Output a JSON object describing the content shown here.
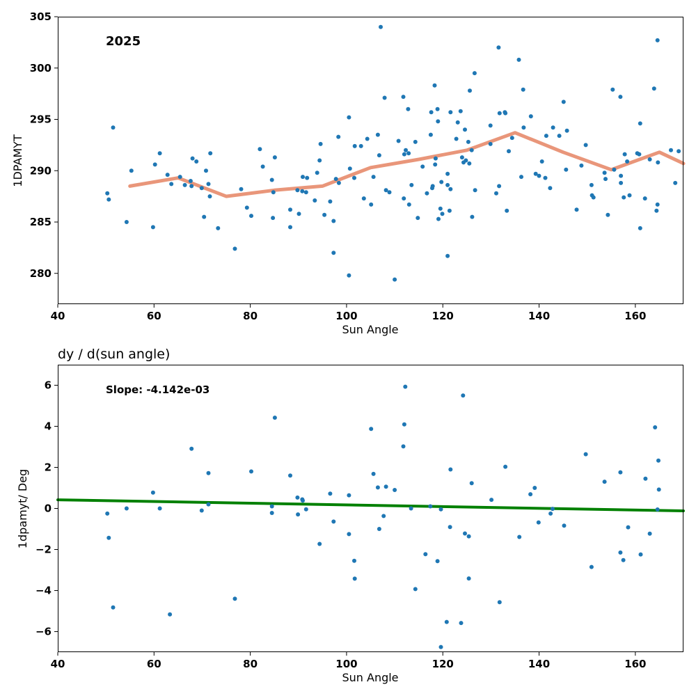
{
  "chart_data": [
    {
      "type": "scatter",
      "title": "",
      "annotation": "2025",
      "xlabel": "Sun Angle",
      "ylabel": "1DPAMYT",
      "xlim": [
        40,
        170
      ],
      "ylim": [
        277,
        305
      ],
      "xticks": [
        40,
        60,
        80,
        100,
        120,
        140,
        160
      ],
      "yticks": [
        280,
        285,
        290,
        295,
        300,
        305
      ],
      "grid": false,
      "colors": {
        "points": "#1f77b4",
        "line": "#e9967a"
      },
      "series": [
        {
          "type": "scatter",
          "points": [
            [
              50.3,
              287.8
            ],
            [
              50.6,
              287.2
            ],
            [
              51.5,
              294.2
            ],
            [
              54.3,
              285.0
            ],
            [
              55.3,
              290.0
            ],
            [
              59.8,
              284.5
            ],
            [
              60.2,
              290.6
            ],
            [
              61.2,
              291.7
            ],
            [
              62.8,
              289.6
            ],
            [
              63.6,
              288.7
            ],
            [
              65.4,
              289.4
            ],
            [
              66.4,
              288.6
            ],
            [
              67.6,
              289.0
            ],
            [
              67.8,
              288.5
            ],
            [
              68.0,
              291.2
            ],
            [
              68.8,
              290.9
            ],
            [
              69.9,
              288.3
            ],
            [
              70.4,
              285.5
            ],
            [
              70.8,
              290.0
            ],
            [
              71.3,
              288.7
            ],
            [
              71.6,
              287.5
            ],
            [
              71.7,
              291.7
            ],
            [
              73.3,
              284.4
            ],
            [
              76.8,
              282.4
            ],
            [
              78.1,
              288.2
            ],
            [
              79.3,
              286.4
            ],
            [
              80.2,
              285.6
            ],
            [
              82.0,
              292.1
            ],
            [
              82.6,
              290.4
            ],
            [
              84.5,
              289.1
            ],
            [
              84.7,
              285.4
            ],
            [
              84.8,
              287.9
            ],
            [
              85.1,
              291.3
            ],
            [
              88.3,
              286.2
            ],
            [
              88.3,
              284.5
            ],
            [
              89.8,
              288.1
            ],
            [
              90.1,
              285.8
            ],
            [
              90.8,
              288.0
            ],
            [
              90.9,
              289.4
            ],
            [
              91.6,
              287.9
            ],
            [
              91.8,
              289.3
            ],
            [
              93.4,
              287.1
            ],
            [
              93.9,
              289.8
            ],
            [
              94.4,
              291.0
            ],
            [
              94.6,
              292.6
            ],
            [
              95.4,
              285.7
            ],
            [
              96.6,
              287.0
            ],
            [
              97.3,
              285.1
            ],
            [
              97.3,
              282.0
            ],
            [
              97.8,
              289.2
            ],
            [
              98.3,
              293.3
            ],
            [
              98.4,
              288.8
            ],
            [
              100.5,
              279.8
            ],
            [
              100.5,
              295.2
            ],
            [
              100.7,
              290.2
            ],
            [
              101.6,
              289.3
            ],
            [
              101.7,
              292.4
            ],
            [
              103.0,
              292.4
            ],
            [
              103.6,
              287.3
            ],
            [
              104.3,
              293.1
            ],
            [
              105.1,
              286.7
            ],
            [
              105.6,
              289.4
            ],
            [
              106.5,
              293.5
            ],
            [
              106.8,
              291.5
            ],
            [
              107.1,
              304.0
            ],
            [
              107.9,
              297.1
            ],
            [
              108.2,
              288.1
            ],
            [
              108.9,
              287.9
            ],
            [
              110.0,
              279.4
            ],
            [
              110.8,
              292.9
            ],
            [
              111.8,
              297.2
            ],
            [
              111.9,
              287.3
            ],
            [
              112.0,
              291.6
            ],
            [
              112.3,
              292.0
            ],
            [
              112.8,
              296.0
            ],
            [
              112.9,
              291.7
            ],
            [
              113.0,
              286.7
            ],
            [
              113.5,
              288.6
            ],
            [
              114.3,
              292.8
            ],
            [
              114.8,
              285.4
            ],
            [
              115.8,
              290.4
            ],
            [
              116.7,
              287.8
            ],
            [
              117.5,
              293.5
            ],
            [
              117.6,
              295.7
            ],
            [
              117.8,
              288.3
            ],
            [
              117.9,
              288.5
            ],
            [
              118.3,
              298.3
            ],
            [
              118.4,
              290.6
            ],
            [
              118.5,
              291.2
            ],
            [
              118.9,
              296.0
            ],
            [
              119.0,
              294.8
            ],
            [
              119.1,
              285.3
            ],
            [
              119.5,
              286.3
            ],
            [
              119.7,
              288.9
            ],
            [
              119.9,
              285.8
            ],
            [
              121.0,
              288.6
            ],
            [
              121.0,
              289.7
            ],
            [
              121.0,
              281.7
            ],
            [
              121.4,
              286.1
            ],
            [
              121.6,
              295.7
            ],
            [
              121.6,
              288.2
            ],
            [
              122.8,
              293.1
            ],
            [
              123.1,
              294.7
            ],
            [
              123.7,
              295.8
            ],
            [
              124.0,
              291.3
            ],
            [
              124.3,
              290.8
            ],
            [
              124.6,
              294.0
            ],
            [
              124.8,
              291.0
            ],
            [
              125.3,
              292.8
            ],
            [
              125.5,
              290.7
            ],
            [
              125.6,
              297.8
            ],
            [
              126.0,
              292.0
            ],
            [
              126.1,
              285.5
            ],
            [
              126.6,
              299.5
            ],
            [
              126.7,
              288.1
            ],
            [
              129.9,
              294.4
            ],
            [
              129.9,
              292.6
            ],
            [
              131.1,
              287.8
            ],
            [
              131.6,
              302.0
            ],
            [
              131.7,
              288.5
            ],
            [
              131.8,
              295.6
            ],
            [
              132.9,
              295.7
            ],
            [
              133.0,
              295.6
            ],
            [
              133.3,
              286.1
            ],
            [
              133.7,
              291.9
            ],
            [
              134.4,
              293.2
            ],
            [
              135.8,
              300.8
            ],
            [
              136.3,
              289.4
            ],
            [
              136.7,
              297.9
            ],
            [
              136.8,
              294.2
            ],
            [
              138.3,
              295.3
            ],
            [
              139.3,
              289.7
            ],
            [
              140.0,
              289.5
            ],
            [
              140.6,
              290.9
            ],
            [
              141.3,
              289.3
            ],
            [
              141.5,
              293.4
            ],
            [
              142.3,
              288.3
            ],
            [
              142.9,
              294.2
            ],
            [
              144.2,
              293.4
            ],
            [
              145.1,
              296.7
            ],
            [
              145.6,
              290.1
            ],
            [
              145.8,
              293.9
            ],
            [
              147.8,
              286.2
            ],
            [
              148.8,
              290.5
            ],
            [
              149.7,
              292.5
            ],
            [
              150.9,
              288.6
            ],
            [
              151.0,
              287.6
            ],
            [
              151.3,
              287.4
            ],
            [
              153.6,
              289.8
            ],
            [
              153.8,
              289.2
            ],
            [
              154.3,
              285.7
            ],
            [
              155.3,
              297.9
            ],
            [
              155.6,
              290.1
            ],
            [
              156.9,
              297.2
            ],
            [
              157.0,
              288.8
            ],
            [
              157.0,
              289.5
            ],
            [
              157.6,
              287.4
            ],
            [
              157.8,
              291.6
            ],
            [
              158.3,
              290.9
            ],
            [
              158.8,
              287.6
            ],
            [
              160.4,
              291.7
            ],
            [
              160.8,
              291.6
            ],
            [
              161.0,
              284.4
            ],
            [
              161.0,
              294.6
            ],
            [
              162.0,
              287.3
            ],
            [
              163.0,
              291.1
            ],
            [
              163.9,
              298.0
            ],
            [
              164.4,
              286.1
            ],
            [
              164.6,
              302.7
            ],
            [
              164.6,
              286.7
            ],
            [
              164.7,
              290.8
            ],
            [
              167.4,
              292.0
            ],
            [
              168.3,
              288.8
            ],
            [
              169.0,
              291.9
            ]
          ]
        },
        {
          "type": "line",
          "x": [
            55,
            65,
            75,
            85,
            95,
            105,
            115,
            125,
            135,
            145,
            155,
            165,
            170
          ],
          "y": [
            288.5,
            289.3,
            287.5,
            288.1,
            288.5,
            290.3,
            291.1,
            292.0,
            293.7,
            291.8,
            290.1,
            291.8,
            290.7
          ]
        }
      ]
    },
    {
      "type": "scatter",
      "title": "dy / d(sun angle)",
      "annotation": "Slope: -4.142e-03",
      "xlabel": "Sun Angle",
      "ylabel": "1dpamyt/ Deg",
      "xlim": [
        40,
        170
      ],
      "ylim": [
        -7,
        7
      ],
      "xticks": [
        40,
        60,
        80,
        100,
        120,
        140,
        160
      ],
      "yticks": [
        -6,
        -4,
        -2,
        0,
        2,
        4,
        6
      ],
      "grid": false,
      "colors": {
        "points": "#1f77b4",
        "line": "#008000"
      },
      "series": [
        {
          "type": "scatter",
          "points": [
            [
              50.3,
              -0.25
            ],
            [
              50.6,
              -1.43
            ],
            [
              51.5,
              -4.82
            ],
            [
              54.3,
              0.0
            ],
            [
              59.8,
              0.77
            ],
            [
              61.2,
              0.0
            ],
            [
              63.3,
              -5.16
            ],
            [
              67.8,
              2.91
            ],
            [
              69.9,
              -0.1
            ],
            [
              71.3,
              0.2
            ],
            [
              71.3,
              1.72
            ],
            [
              76.8,
              -4.4
            ],
            [
              80.2,
              1.8
            ],
            [
              84.5,
              0.1
            ],
            [
              84.5,
              -0.22
            ],
            [
              85.1,
              4.42
            ],
            [
              88.3,
              1.6
            ],
            [
              89.8,
              0.53
            ],
            [
              89.9,
              -0.29
            ],
            [
              90.8,
              0.44
            ],
            [
              90.9,
              0.38
            ],
            [
              91.6,
              -0.04
            ],
            [
              94.4,
              -1.73
            ],
            [
              96.6,
              0.72
            ],
            [
              97.3,
              -0.64
            ],
            [
              100.5,
              0.64
            ],
            [
              100.5,
              -1.25
            ],
            [
              101.6,
              -2.55
            ],
            [
              101.7,
              -3.42
            ],
            [
              105.1,
              3.87
            ],
            [
              105.6,
              1.68
            ],
            [
              106.5,
              1.02
            ],
            [
              106.8,
              -1.0
            ],
            [
              107.7,
              -0.37
            ],
            [
              108.2,
              1.06
            ],
            [
              110.0,
              0.9
            ],
            [
              111.8,
              3.02
            ],
            [
              112.0,
              4.09
            ],
            [
              112.2,
              5.93
            ],
            [
              113.4,
              0.0
            ],
            [
              114.3,
              -3.93
            ],
            [
              116.4,
              -2.23
            ],
            [
              117.4,
              0.1
            ],
            [
              118.9,
              -2.57
            ],
            [
              119.6,
              -0.04
            ],
            [
              119.6,
              -6.75
            ],
            [
              120.8,
              -5.53
            ],
            [
              121.5,
              -0.91
            ],
            [
              121.6,
              1.9
            ],
            [
              123.8,
              -5.58
            ],
            [
              124.2,
              5.5
            ],
            [
              124.6,
              -1.22
            ],
            [
              125.4,
              -1.36
            ],
            [
              125.4,
              -3.41
            ],
            [
              126.0,
              1.23
            ],
            [
              130.1,
              0.42
            ],
            [
              131.8,
              -4.57
            ],
            [
              133.0,
              2.03
            ],
            [
              135.9,
              -1.39
            ],
            [
              138.2,
              0.69
            ],
            [
              139.1,
              1.0
            ],
            [
              139.9,
              -0.68
            ],
            [
              142.4,
              -0.25
            ],
            [
              142.8,
              -0.02
            ],
            [
              145.2,
              -0.84
            ],
            [
              149.7,
              2.64
            ],
            [
              150.9,
              -2.85
            ],
            [
              153.6,
              1.3
            ],
            [
              156.9,
              1.76
            ],
            [
              156.9,
              -2.15
            ],
            [
              157.5,
              -2.52
            ],
            [
              158.5,
              -0.92
            ],
            [
              161.1,
              -2.24
            ],
            [
              162.1,
              1.45
            ],
            [
              163.0,
              -1.23
            ],
            [
              164.1,
              3.95
            ],
            [
              164.6,
              -0.05
            ],
            [
              164.8,
              2.33
            ],
            [
              164.9,
              0.92
            ]
          ]
        },
        {
          "type": "line",
          "x": [
            40,
            170
          ],
          "y": [
            0.42,
            -0.12
          ]
        }
      ]
    }
  ]
}
